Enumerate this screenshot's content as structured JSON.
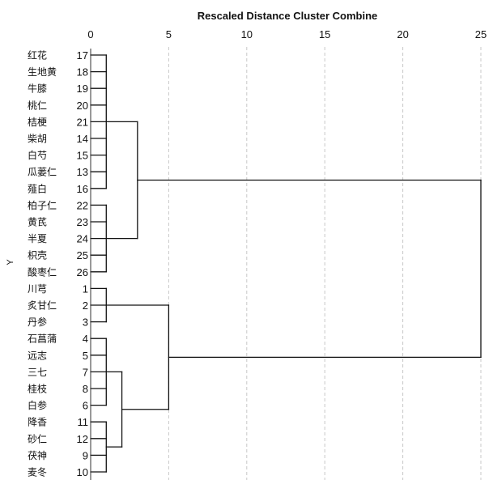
{
  "chart_data": {
    "type": "dendrogram",
    "title": "Rescaled Distance Cluster Combine",
    "ylabel": "Y",
    "xlim": [
      0,
      25
    ],
    "xticks": [
      0,
      5,
      10,
      15,
      20,
      25
    ],
    "grid": true,
    "leaves": [
      {
        "name": "红花",
        "id": "17"
      },
      {
        "name": "生地黄",
        "id": "18"
      },
      {
        "name": "牛膝",
        "id": "19"
      },
      {
        "name": "桃仁",
        "id": "20"
      },
      {
        "name": "桔梗",
        "id": "21"
      },
      {
        "name": "柴胡",
        "id": "14"
      },
      {
        "name": "白芍",
        "id": "15"
      },
      {
        "name": "瓜蒌仁",
        "id": "13"
      },
      {
        "name": "薤白",
        "id": "16"
      },
      {
        "name": "柏子仁",
        "id": "22"
      },
      {
        "name": "黄芪",
        "id": "23"
      },
      {
        "name": "半夏",
        "id": "24"
      },
      {
        "name": "枳壳",
        "id": "25"
      },
      {
        "name": "酸枣仁",
        "id": "26"
      },
      {
        "name": "川芎",
        "id": "1"
      },
      {
        "name": "炙甘仁",
        "id": "2"
      },
      {
        "name": "丹参",
        "id": "3"
      },
      {
        "name": "石菖蒲",
        "id": "4"
      },
      {
        "name": "远志",
        "id": "5"
      },
      {
        "name": "三七",
        "id": "7"
      },
      {
        "name": "桂枝",
        "id": "8"
      },
      {
        "name": "白参",
        "id": "6"
      },
      {
        "name": "降香",
        "id": "11"
      },
      {
        "name": "砂仁",
        "id": "12"
      },
      {
        "name": "茯神",
        "id": "9"
      },
      {
        "name": "麦冬",
        "id": "10"
      }
    ],
    "merges": [
      {
        "name": "A",
        "children": [
          0,
          1,
          2,
          3,
          4,
          5,
          6,
          7,
          8
        ],
        "height": 1
      },
      {
        "name": "B",
        "children": [
          9,
          10,
          11,
          12,
          13
        ],
        "height": 1
      },
      {
        "name": "C",
        "children": [
          "A",
          "B"
        ],
        "height": 3
      },
      {
        "name": "D",
        "children": [
          14,
          15,
          16
        ],
        "height": 1
      },
      {
        "name": "E",
        "children": [
          17,
          18,
          19,
          20,
          21
        ],
        "height": 1
      },
      {
        "name": "F",
        "children": [
          22,
          23,
          24,
          25
        ],
        "height": 1
      },
      {
        "name": "G",
        "children": [
          "E",
          "F"
        ],
        "height": 2
      },
      {
        "name": "H",
        "children": [
          "D",
          "G"
        ],
        "height": 5
      },
      {
        "name": "I",
        "children": [
          "C",
          "H"
        ],
        "height": 25
      }
    ]
  }
}
